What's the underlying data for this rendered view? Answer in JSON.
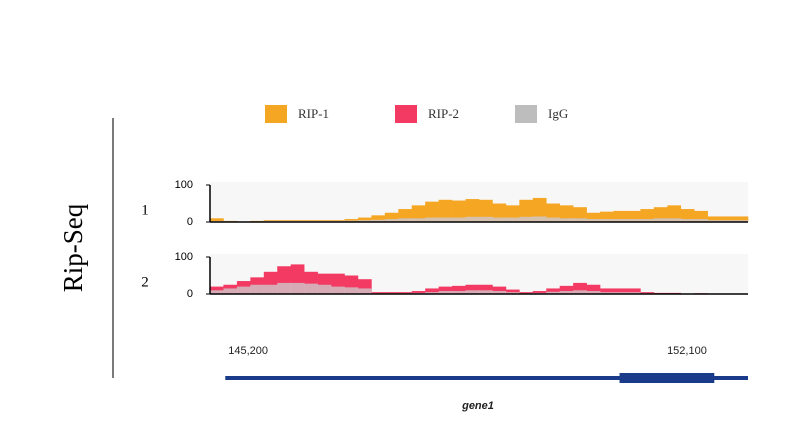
{
  "ylabel": "Rip-Seq",
  "legend": [
    {
      "name": "RIP-1",
      "color": "#f5a623"
    },
    {
      "name": "RIP-2",
      "color": "#f23a63"
    },
    {
      "name": "IgG",
      "color": "#bdbdbd"
    }
  ],
  "xlim": [
    144600,
    153060
  ],
  "xticks": [
    {
      "value": 145200,
      "label": "145,200"
    },
    {
      "value": 152100,
      "label": "152,100"
    }
  ],
  "gene": {
    "name": "gene1",
    "start": 144840,
    "end": 153060,
    "exon": [
      151040,
      152530
    ],
    "color": "#1a3a8a"
  },
  "chart_data": [
    {
      "type": "bar",
      "label": "1",
      "ylim": [
        0,
        100
      ],
      "yticks": [
        0,
        100
      ],
      "series": [
        {
          "color": "#f5a623",
          "values": [
            10,
            3,
            0,
            3,
            5,
            5,
            5,
            5,
            5,
            5,
            8,
            12,
            18,
            25,
            35,
            45,
            55,
            60,
            58,
            62,
            60,
            50,
            45,
            60,
            65,
            50,
            45,
            40,
            25,
            28,
            30,
            30,
            35,
            40,
            45,
            35,
            30,
            15,
            15,
            15
          ]
        },
        {
          "color": "#cfc6c6",
          "values": [
            3,
            2,
            0,
            2,
            3,
            3,
            3,
            3,
            3,
            3,
            4,
            5,
            6,
            8,
            10,
            10,
            12,
            12,
            12,
            14,
            14,
            12,
            12,
            14,
            15,
            12,
            10,
            10,
            8,
            8,
            8,
            8,
            8,
            10,
            10,
            8,
            8,
            5,
            5,
            5
          ]
        }
      ]
    },
    {
      "type": "bar",
      "label": "2",
      "ylim": [
        0,
        100
      ],
      "yticks": [
        0,
        100
      ],
      "series": [
        {
          "color": "#f23a63",
          "values": [
            20,
            25,
            35,
            45,
            60,
            75,
            80,
            60,
            55,
            55,
            50,
            40,
            5,
            5,
            5,
            8,
            15,
            20,
            22,
            25,
            25,
            20,
            12,
            5,
            8,
            15,
            22,
            30,
            25,
            15,
            15,
            15,
            5,
            3,
            3,
            0,
            2,
            0,
            0,
            0
          ]
        },
        {
          "color": "#d2c0c4",
          "values": [
            10,
            15,
            20,
            25,
            25,
            30,
            30,
            28,
            25,
            20,
            18,
            15,
            2,
            2,
            2,
            3,
            5,
            8,
            8,
            10,
            10,
            8,
            5,
            2,
            3,
            6,
            8,
            10,
            8,
            5,
            5,
            5,
            2,
            1,
            1,
            0,
            0,
            0,
            0,
            0
          ]
        }
      ]
    }
  ]
}
